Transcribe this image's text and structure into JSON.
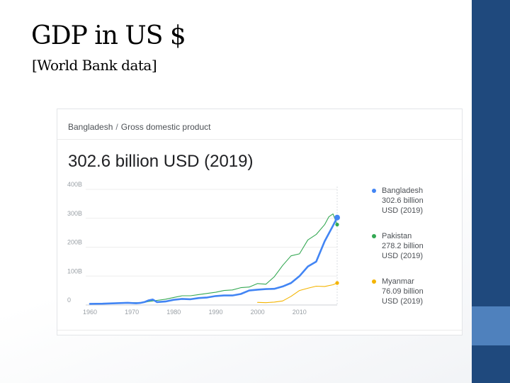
{
  "slide": {
    "title": "GDP in US $",
    "subtitle": "[World Bank data]"
  },
  "card": {
    "breadcrumb": [
      "Bangladesh",
      "Gross domestic product"
    ],
    "breadcrumb_separator": "/",
    "headline": "302.6 billion USD (2019)"
  },
  "colors": {
    "bangladesh": "#4285f4",
    "pakistan": "#34a853",
    "myanmar": "#f4b400",
    "right_bar": "#1f497d",
    "right_bar_accent": "#4f81bd"
  },
  "chart_data": {
    "type": "line",
    "x_ticks": [
      "1960",
      "1970",
      "1980",
      "1990",
      "2000",
      "2010"
    ],
    "y_ticks": [
      "0",
      "100B",
      "200B",
      "300B",
      "400B"
    ],
    "xlim": [
      1960,
      2019
    ],
    "ylim": [
      0,
      400
    ],
    "grid": true,
    "legend_position": "right",
    "series": [
      {
        "name": "Bangladesh",
        "legend_lines": [
          "Bangladesh",
          "302.6 billion",
          "USD (2019)"
        ],
        "color": "#4285f4",
        "x": [
          1960,
          1963,
          1966,
          1969,
          1971,
          1972,
          1973,
          1974,
          1975,
          1976,
          1978,
          1980,
          1982,
          1984,
          1986,
          1988,
          1990,
          1992,
          1994,
          1996,
          1998,
          2000,
          2002,
          2004,
          2006,
          2008,
          2010,
          2012,
          2014,
          2016,
          2018,
          2019
        ],
        "y": [
          4,
          4.5,
          6,
          7.5,
          6,
          7,
          10,
          16,
          19,
          10,
          12,
          18,
          21,
          20,
          24,
          26,
          31,
          33,
          33,
          38,
          50,
          53,
          55,
          56,
          64,
          76,
          100,
          133,
          150,
          220,
          274,
          302.6
        ]
      },
      {
        "name": "Pakistan",
        "legend_lines": [
          "Pakistan",
          "278.2 billion",
          "USD (2019)"
        ],
        "color": "#34a853",
        "x": [
          1960,
          1963,
          1966,
          1969,
          1971,
          1972,
          1973,
          1974,
          1975,
          1976,
          1978,
          1980,
          1982,
          1984,
          1986,
          1988,
          1990,
          1992,
          1994,
          1996,
          1998,
          2000,
          2002,
          2004,
          2006,
          2008,
          2010,
          2012,
          2014,
          2016,
          2017,
          2018,
          2019
        ],
        "y": [
          4,
          5,
          7,
          8,
          8,
          7,
          9,
          12,
          14,
          16,
          20,
          26,
          32,
          32,
          36,
          40,
          44,
          50,
          52,
          60,
          62,
          74,
          72,
          98,
          137,
          170,
          177,
          225,
          244,
          278,
          305,
          315,
          278.2
        ]
      },
      {
        "name": "Myanmar",
        "legend_lines": [
          "Myanmar",
          "76.09 billion",
          "USD (2019)"
        ],
        "color": "#f4b400",
        "x": [
          2000,
          2002,
          2004,
          2006,
          2008,
          2010,
          2012,
          2014,
          2016,
          2018,
          2019
        ],
        "y": [
          9,
          8,
          10,
          14,
          30,
          50,
          58,
          65,
          64,
          70,
          76.09
        ]
      }
    ]
  }
}
